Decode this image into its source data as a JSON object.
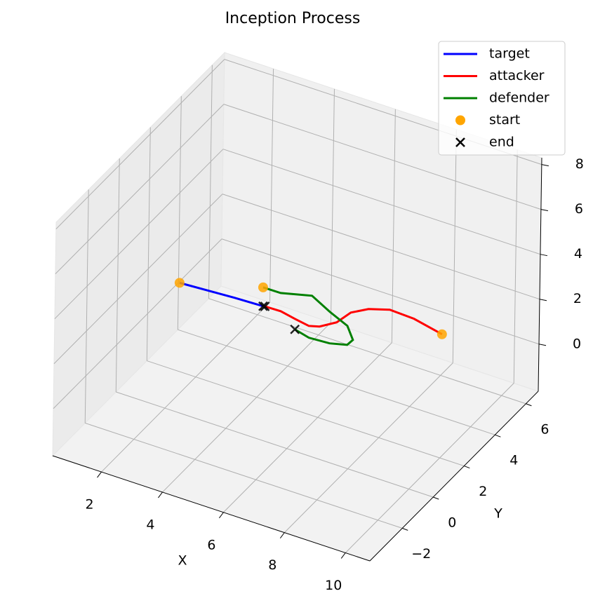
{
  "chart_data": {
    "type": "line3d",
    "title": "Inception Process",
    "x_label": "X",
    "y_label": "Y",
    "xlim": [
      0.4,
      10.8
    ],
    "ylim": [
      -4.1,
      6.8
    ],
    "zlim": [
      -2.1,
      8.3
    ],
    "xticks": [
      2,
      4,
      6,
      8,
      10
    ],
    "yticks": [
      {
        "value": -2,
        "label": "−2"
      },
      0,
      2,
      4,
      6
    ],
    "zticks": [
      0,
      2,
      4,
      6,
      8
    ],
    "grid": true,
    "legend": "upper right",
    "series": [
      {
        "name": "target",
        "color": "#0000ff",
        "x": [
          2.6,
          3.1,
          3.6,
          4.15
        ],
        "y": [
          -0.36,
          0.45,
          1.25,
          2.03
        ],
        "z": [
          4,
          3.33,
          2.67,
          2
        ]
      },
      {
        "name": "attacker",
        "color": "#ff0000",
        "x": [
          9.25,
          8.18,
          7.36,
          6.82,
          6.47,
          6.36,
          6.04,
          5.76,
          5.24,
          4.71,
          4.2
        ],
        "y": [
          3.54,
          3.84,
          3.89,
          3.58,
          3.13,
          2.43,
          1.95,
          1.81,
          1.93,
          2.07,
          2.05
        ],
        "z": [
          2,
          2,
          2,
          2,
          2,
          2,
          2,
          2,
          2,
          2,
          2
        ]
      },
      {
        "name": "defender",
        "color": "#008000",
        "x": [
          3.69,
          4.26,
          5.1,
          5.93,
          6.71,
          7.19,
          7.17,
          6.7,
          6.05,
          5.5
        ],
        "y": [
          2.94,
          2.95,
          3.32,
          2.83,
          2.43,
          1.84,
          1.51,
          1.3,
          1.24,
          1.42
        ],
        "z": [
          2,
          2,
          2,
          2,
          2,
          2,
          2,
          2,
          2,
          2
        ]
      }
    ],
    "start_marker": {
      "name": "start",
      "color": "#ffa500"
    },
    "end_marker": {
      "name": "end",
      "color": "#000000"
    }
  }
}
